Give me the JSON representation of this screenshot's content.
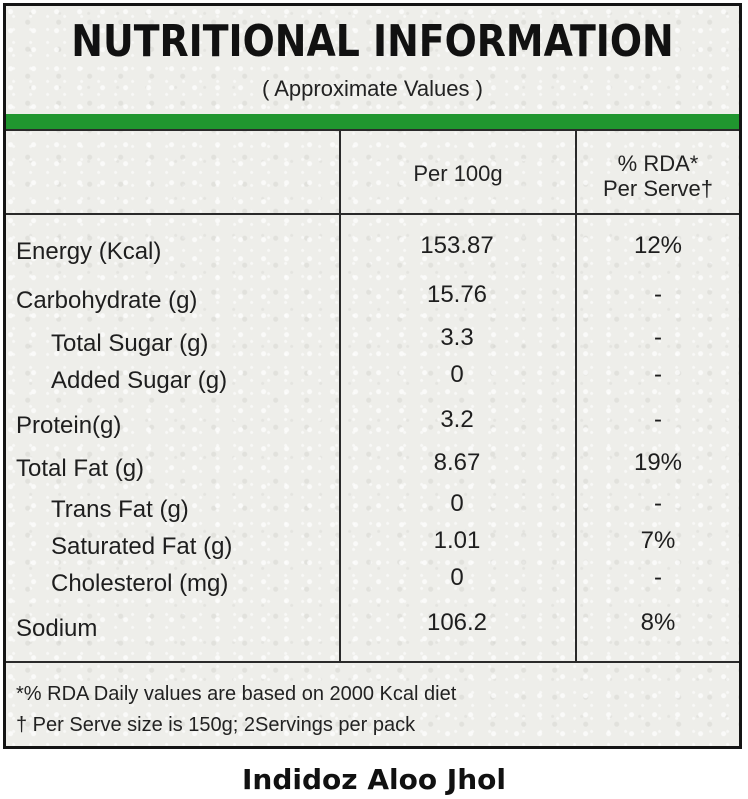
{
  "label": {
    "title": "NUTRITIONAL INFORMATION",
    "subtitle": "( Approximate Values )",
    "columns": {
      "per_100g": "Per 100g",
      "rda_line1": "% RDA*",
      "rda_line2": "Per Serve†"
    },
    "rows": [
      {
        "name": "Energy (Kcal)",
        "per_100g": "153.87",
        "rda": "12%"
      },
      {
        "name": "Carbohydrate (g)",
        "per_100g": "15.76",
        "rda": "-"
      },
      {
        "name": "Total Sugar (g)",
        "per_100g": "3.3",
        "rda": "-"
      },
      {
        "name": "Added Sugar (g)",
        "per_100g": "0",
        "rda": "-"
      },
      {
        "name": "Protein(g)",
        "per_100g": "3.2",
        "rda": "-"
      },
      {
        "name": "Total Fat (g)",
        "per_100g": "8.67",
        "rda": "19%"
      },
      {
        "name": "Trans Fat (g)",
        "per_100g": "0",
        "rda": "-"
      },
      {
        "name": "Saturated Fat (g)",
        "per_100g": "1.01",
        "rda": "7%"
      },
      {
        "name": "Cholesterol (mg)",
        "per_100g": "0",
        "rda": "-"
      },
      {
        "name": "Sodium",
        "per_100g": "106.2",
        "rda": "8%"
      }
    ],
    "footnotes": [
      "*% RDA Daily values are based on 2000 Kcal diet",
      "† Per Serve size is 150g; 2Servings per pack"
    ]
  },
  "product_name": "Indidoz Aloo Jhol",
  "colors": {
    "accent_bar": "#20962f",
    "border": "#141414"
  }
}
